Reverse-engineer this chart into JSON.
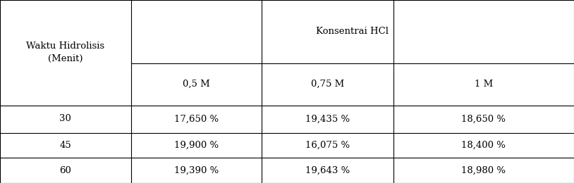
{
  "col_header_top": "Konsentrai HCl",
  "col_header_sub": [
    "0,5 M",
    "0,75 M",
    "1 M"
  ],
  "row_header_label_line1": "Waktu Hidrolisis",
  "row_header_label_line2": "(Menit)",
  "row_labels": [
    "30",
    "45",
    "60"
  ],
  "table_data": [
    [
      "17,650 %",
      "19,435 %",
      "18,650 %"
    ],
    [
      "19,900 %",
      "16,075 %",
      "18,400 %"
    ],
    [
      "19,390 %",
      "19,643 %",
      "18,980 %"
    ]
  ],
  "background_color": "#ffffff",
  "line_color": "#000000",
  "font_size": 9.5,
  "col_bounds": [
    0.0,
    0.228,
    0.456,
    0.685,
    1.0
  ],
  "row_bounds": [
    1.0,
    0.655,
    0.425,
    0.275,
    0.138,
    0.0
  ]
}
